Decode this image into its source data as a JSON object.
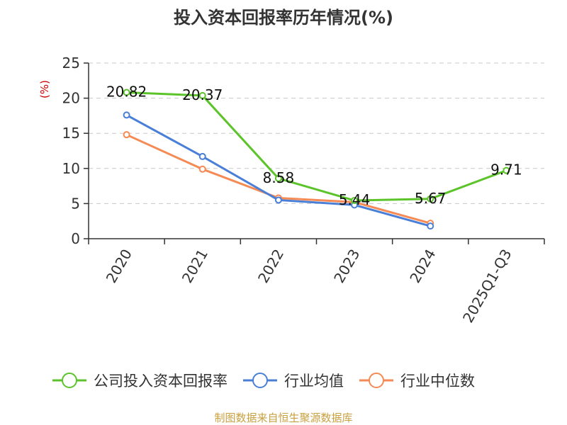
{
  "chart_data": {
    "type": "line",
    "title": "投入资本回报率历年情况(%)",
    "ylabel": "(%)",
    "xlabel": "",
    "categories": [
      "2020",
      "2021",
      "2022",
      "2023",
      "2024",
      "2025Q1-Q3"
    ],
    "ylim": [
      0,
      25
    ],
    "yticks": [
      0,
      5,
      10,
      15,
      20,
      25
    ],
    "grid": true,
    "legend_position": "bottom",
    "series": [
      {
        "name": "公司投入资本回报率",
        "color": "#5cc42a",
        "values": [
          20.82,
          20.37,
          8.58,
          5.44,
          5.67,
          9.71
        ],
        "labels": [
          "20.82",
          "20.37",
          "8.58",
          "5.44",
          "5.67",
          "9.71"
        ]
      },
      {
        "name": "行业均值",
        "color": "#4a7fd8",
        "values": [
          17.6,
          11.7,
          5.5,
          4.8,
          1.8,
          null
        ],
        "labels": []
      },
      {
        "name": "行业中位数",
        "color": "#f58a55",
        "values": [
          14.8,
          9.9,
          5.8,
          5.2,
          2.2,
          null
        ],
        "labels": []
      }
    ],
    "source": "制图数据来自恒生聚源数据库"
  }
}
